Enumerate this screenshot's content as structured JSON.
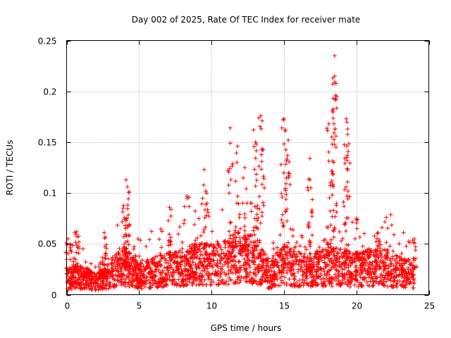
{
  "chart_data": {
    "type": "scatter",
    "title": "Day 002 of 2025, Rate Of TEC Index for receiver mate",
    "xlabel": "GPS time / hours",
    "ylabel": "ROTI / TECUs",
    "xlim": [
      0,
      25
    ],
    "ylim": [
      0,
      0.25
    ],
    "xticks": [
      0,
      5,
      10,
      15,
      20,
      25
    ],
    "xtick_labels": [
      "0",
      "5",
      "10",
      "15",
      "20",
      "25"
    ],
    "yticks": [
      0,
      0.05,
      0.1,
      0.15,
      0.2,
      0.25
    ],
    "ytick_labels": [
      "0",
      "0.05",
      "0.1",
      "0.15",
      "0.2",
      "0.25"
    ],
    "grid": true,
    "marker": "+",
    "color": "#ff0000",
    "series": [
      {
        "name": "ROTI",
        "peaks": [
          {
            "x": 0.1,
            "y": 0.055
          },
          {
            "x": 0.7,
            "y": 0.062
          },
          {
            "x": 2.6,
            "y": 0.061
          },
          {
            "x": 4.1,
            "y": 0.113
          },
          {
            "x": 4.2,
            "y": 0.106
          },
          {
            "x": 4.0,
            "y": 0.074
          },
          {
            "x": 7.1,
            "y": 0.086
          },
          {
            "x": 8.3,
            "y": 0.097
          },
          {
            "x": 9.5,
            "y": 0.123
          },
          {
            "x": 9.6,
            "y": 0.102
          },
          {
            "x": 11.3,
            "y": 0.164
          },
          {
            "x": 11.3,
            "y": 0.149
          },
          {
            "x": 11.8,
            "y": 0.146
          },
          {
            "x": 12.3,
            "y": 0.125
          },
          {
            "x": 12.9,
            "y": 0.162
          },
          {
            "x": 13.1,
            "y": 0.148
          },
          {
            "x": 13.4,
            "y": 0.176
          },
          {
            "x": 13.5,
            "y": 0.171
          },
          {
            "x": 14.8,
            "y": 0.128
          },
          {
            "x": 15.0,
            "y": 0.173
          },
          {
            "x": 15.1,
            "y": 0.161
          },
          {
            "x": 15.3,
            "y": 0.152
          },
          {
            "x": 16.8,
            "y": 0.134
          },
          {
            "x": 16.8,
            "y": 0.113
          },
          {
            "x": 18.1,
            "y": 0.168
          },
          {
            "x": 18.3,
            "y": 0.155
          },
          {
            "x": 18.4,
            "y": 0.193
          },
          {
            "x": 18.5,
            "y": 0.235
          },
          {
            "x": 18.5,
            "y": 0.215
          },
          {
            "x": 18.5,
            "y": 0.209
          },
          {
            "x": 19.3,
            "y": 0.173
          },
          {
            "x": 19.4,
            "y": 0.163
          },
          {
            "x": 19.2,
            "y": 0.134
          },
          {
            "x": 20.0,
            "y": 0.075
          },
          {
            "x": 21.5,
            "y": 0.061
          },
          {
            "x": 24.0,
            "y": 0.055
          }
        ],
        "baseline_profile": [
          {
            "x": 0,
            "y": 0.015
          },
          {
            "x": 1,
            "y": 0.018
          },
          {
            "x": 2,
            "y": 0.012
          },
          {
            "x": 3,
            "y": 0.02
          },
          {
            "x": 4,
            "y": 0.028
          },
          {
            "x": 5,
            "y": 0.018
          },
          {
            "x": 6,
            "y": 0.022
          },
          {
            "x": 7,
            "y": 0.025
          },
          {
            "x": 8,
            "y": 0.027
          },
          {
            "x": 9,
            "y": 0.03
          },
          {
            "x": 10,
            "y": 0.03
          },
          {
            "x": 11,
            "y": 0.032
          },
          {
            "x": 12,
            "y": 0.038
          },
          {
            "x": 13,
            "y": 0.035
          },
          {
            "x": 14,
            "y": 0.02
          },
          {
            "x": 15,
            "y": 0.03
          },
          {
            "x": 16,
            "y": 0.025
          },
          {
            "x": 17,
            "y": 0.024
          },
          {
            "x": 18,
            "y": 0.028
          },
          {
            "x": 19,
            "y": 0.026
          },
          {
            "x": 20,
            "y": 0.025
          },
          {
            "x": 21,
            "y": 0.027
          },
          {
            "x": 22,
            "y": 0.026
          },
          {
            "x": 23,
            "y": 0.022
          },
          {
            "x": 24,
            "y": 0.02
          }
        ],
        "x_range": [
          0,
          24
        ],
        "y_range": [
          0.002,
          0.235
        ]
      }
    ]
  }
}
